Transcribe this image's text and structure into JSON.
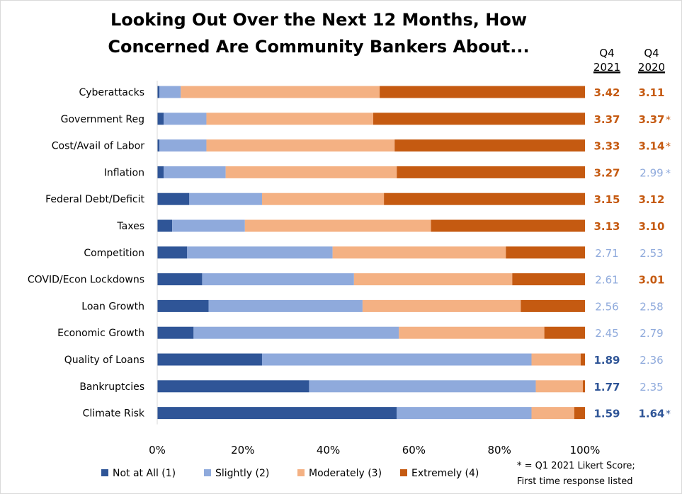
{
  "title_lines": [
    "Looking Out Over the Next 12 Months, How",
    "Concerned Are Community Bankers About..."
  ],
  "score_columns": [
    {
      "label_top": "Q4",
      "label_bottom": "2021"
    },
    {
      "label_top": "Q4",
      "label_bottom": "2020"
    }
  ],
  "colors": {
    "not_at_all": "#2f5597",
    "slightly": "#8faadc",
    "moderately": "#f4b183",
    "extremely": "#c55a11",
    "score_orange": "#c55a11",
    "score_light": "#8faadc",
    "score_dark": "#2f5597"
  },
  "chart_data": {
    "type": "bar",
    "orientation": "horizontal",
    "stacked": "percent",
    "title": "Looking Out Over the Next 12 Months, How Concerned Are Community Bankers About...",
    "categories": [
      "Cyberattacks",
      "Government Reg",
      "Cost/Avail of Labor",
      "Inflation",
      "Federal Debt/Deficit",
      "Taxes",
      "Competition",
      "COVID/Econ Lockdowns",
      "Loan Growth",
      "Economic Growth",
      "Quality of Loans",
      "Bankruptcies",
      "Climate Risk"
    ],
    "series": [
      {
        "name": "Not at All (1)",
        "color": "#2f5597",
        "values": [
          0.5,
          1.5,
          0.5,
          1.5,
          7.5,
          3.5,
          7,
          10.5,
          12,
          8.5,
          24.5,
          35.5,
          56
        ]
      },
      {
        "name": "Slightly (2)",
        "color": "#8faadc",
        "values": [
          5,
          10,
          11,
          14.5,
          17,
          17,
          34,
          35.5,
          36,
          48,
          63,
          53,
          31.5
        ]
      },
      {
        "name": "Moderately (3)",
        "color": "#f4b183",
        "values": [
          46.5,
          39,
          44,
          40,
          28.5,
          43.5,
          40.5,
          37,
          37,
          34,
          11.5,
          11,
          10
        ]
      },
      {
        "name": "Extremely (4)",
        "color": "#c55a11",
        "values": [
          48,
          49.5,
          44.5,
          44,
          47,
          36,
          18.5,
          17,
          15,
          9.5,
          1,
          0.5,
          2.5
        ]
      }
    ],
    "x_ticks": [
      "0%",
      "20%",
      "40%",
      "60%",
      "80%",
      "100%"
    ],
    "xlim": [
      0,
      100
    ],
    "legend_position": "bottom",
    "scores": [
      {
        "q4_2021": "3.42",
        "q4_2020": "3.11",
        "c2021": "orange",
        "c2020": "orange",
        "star": false
      },
      {
        "q4_2021": "3.37",
        "q4_2020": "3.37",
        "c2021": "orange",
        "c2020": "orange",
        "star": true
      },
      {
        "q4_2021": "3.33",
        "q4_2020": "3.14",
        "c2021": "orange",
        "c2020": "orange",
        "star": true
      },
      {
        "q4_2021": "3.27",
        "q4_2020": "2.99",
        "c2021": "orange",
        "c2020": "light",
        "star": true
      },
      {
        "q4_2021": "3.15",
        "q4_2020": "3.12",
        "c2021": "orange",
        "c2020": "orange",
        "star": false
      },
      {
        "q4_2021": "3.13",
        "q4_2020": "3.10",
        "c2021": "orange",
        "c2020": "orange",
        "star": false
      },
      {
        "q4_2021": "2.71",
        "q4_2020": "2.53",
        "c2021": "light",
        "c2020": "light",
        "star": false
      },
      {
        "q4_2021": "2.61",
        "q4_2020": "3.01",
        "c2021": "light",
        "c2020": "orange",
        "star": false
      },
      {
        "q4_2021": "2.56",
        "q4_2020": "2.58",
        "c2021": "light",
        "c2020": "light",
        "star": false
      },
      {
        "q4_2021": "2.45",
        "q4_2020": "2.79",
        "c2021": "light",
        "c2020": "light",
        "star": false
      },
      {
        "q4_2021": "1.89",
        "q4_2020": "2.36",
        "c2021": "dark",
        "c2020": "light",
        "star": false
      },
      {
        "q4_2021": "1.77",
        "q4_2020": "2.35",
        "c2021": "dark",
        "c2020": "light",
        "star": false
      },
      {
        "q4_2021": "1.59",
        "q4_2020": "1.64",
        "c2021": "dark",
        "c2020": "dark",
        "star": true
      }
    ],
    "star_mark": "*",
    "footnote_lines": [
      "* = Q1 2021 Likert Score;",
      "First time response listed"
    ]
  }
}
